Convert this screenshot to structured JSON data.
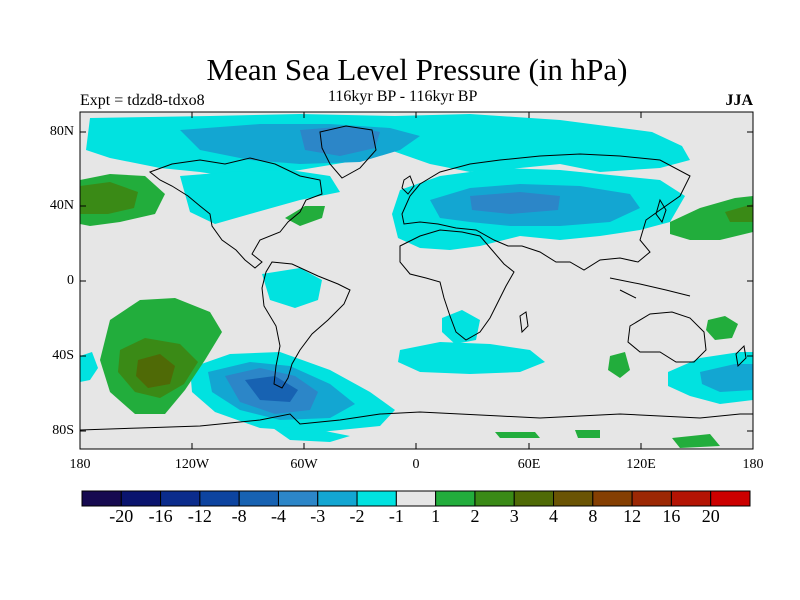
{
  "title": "Mean Sea Level Pressure (in hPa)",
  "left_label": "Expt = tdzd8-tdxo8",
  "center_label": "116kyr BP - 116kyr BP",
  "right_label": "JJA",
  "lat_ticks": [
    "80N",
    "40N",
    "0",
    "40S",
    "80S"
  ],
  "lon_ticks": [
    "180",
    "120W",
    "60W",
    "0",
    "60E",
    "120E",
    "180"
  ],
  "colorbar": {
    "colors": [
      "#160a50",
      "#0a146e",
      "#0b2c8c",
      "#0d44a0",
      "#1762b2",
      "#2c86c8",
      "#13a6d2",
      "#01e2e0",
      "#e6e6e6",
      "#22ad3c",
      "#3a8a16",
      "#4f6a06",
      "#6a5404",
      "#853f02",
      "#9c2804",
      "#b41404",
      "#cc0000"
    ],
    "labels": [
      "-20",
      "-16",
      "-12",
      "-8",
      "-4",
      "-3",
      "-2",
      "-1",
      "1",
      "2",
      "3",
      "4",
      "8",
      "12",
      "16",
      "20"
    ]
  },
  "colors": {
    "land_background": "#e6e6e6",
    "cyan": "#01e2e0",
    "light_blue": "#13a6d2",
    "mid_blue": "#2c86c8",
    "dark_blue": "#1762b2",
    "green": "#22ad3c",
    "olive_green": "#3a8a16",
    "olive": "#4f6a06"
  }
}
